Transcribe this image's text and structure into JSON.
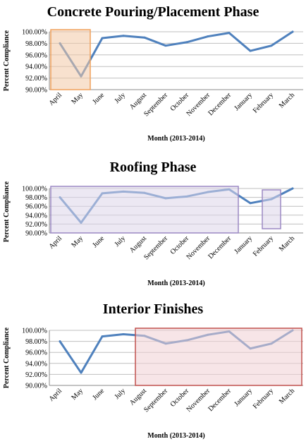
{
  "chart_data": [
    {
      "type": "line",
      "title": "Concrete Pouring/Placement Phase",
      "xlabel": "Month (2013-2014)",
      "ylabel": "Percent Compliance",
      "categories": [
        "April",
        "May",
        "June",
        "July",
        "August",
        "September",
        "October",
        "November",
        "December",
        "January",
        "February",
        "March"
      ],
      "yticks": [
        "90.00%",
        "92.00%",
        "94.00%",
        "96.00%",
        "98.00%",
        "100.00%"
      ],
      "ylim": [
        90,
        100
      ],
      "grid": true,
      "series": [
        {
          "values": [
            98.0,
            92.3,
            98.9,
            99.3,
            99.0,
            97.6,
            98.2,
            99.2,
            99.8,
            96.7,
            97.6,
            100.0
          ],
          "color": "#4f81bd"
        }
      ],
      "highlights": [
        {
          "from_index": 0,
          "to_index": 1,
          "fill": "#f2c9a6",
          "stroke": "#f0a05a"
        }
      ]
    },
    {
      "type": "line",
      "title": "Roofing Phase",
      "xlabel": "Month (2013-2014)",
      "ylabel": "Percent Compliance",
      "categories": [
        "April",
        "May",
        "June",
        "July",
        "August",
        "September",
        "October",
        "November",
        "December",
        "January",
        "February",
        "March"
      ],
      "yticks": [
        "90.00%",
        "92.00%",
        "94.00%",
        "96.00%",
        "98.00%",
        "100.00%"
      ],
      "ylim": [
        90,
        100
      ],
      "grid": true,
      "series": [
        {
          "values": [
            98.0,
            92.3,
            98.9,
            99.3,
            99.0,
            97.8,
            98.2,
            99.2,
            99.8,
            96.7,
            97.6,
            100.0
          ],
          "color": "#4f81bd"
        }
      ],
      "highlights": [
        {
          "from_index": 0,
          "to_index": 8,
          "fill": "#ddd6ea",
          "stroke": "#9b89c4"
        },
        {
          "from_index": 10,
          "to_index": 10,
          "fill": "#ddd6ea",
          "stroke": "#9b89c4"
        }
      ]
    },
    {
      "type": "line",
      "title": "Interior Finishes",
      "xlabel": "Month (2013-2014)",
      "ylabel": "Percent Compliance",
      "categories": [
        "April",
        "May",
        "June",
        "July",
        "August",
        "September",
        "October",
        "November",
        "December",
        "January",
        "February",
        "March"
      ],
      "yticks": [
        "90.00%",
        "92.00%",
        "94.00%",
        "96.00%",
        "98.00%",
        "100.00%"
      ],
      "ylim": [
        90,
        100
      ],
      "grid": true,
      "series": [
        {
          "values": [
            98.0,
            92.3,
            98.9,
            99.3,
            99.0,
            97.6,
            98.2,
            99.2,
            99.8,
            96.7,
            97.6,
            100.0
          ],
          "color": "#4f81bd"
        }
      ],
      "highlights": [
        {
          "from_index": 4,
          "to_index": 11,
          "fill": "#f0d0d4",
          "stroke": "#c0504d"
        }
      ]
    }
  ]
}
